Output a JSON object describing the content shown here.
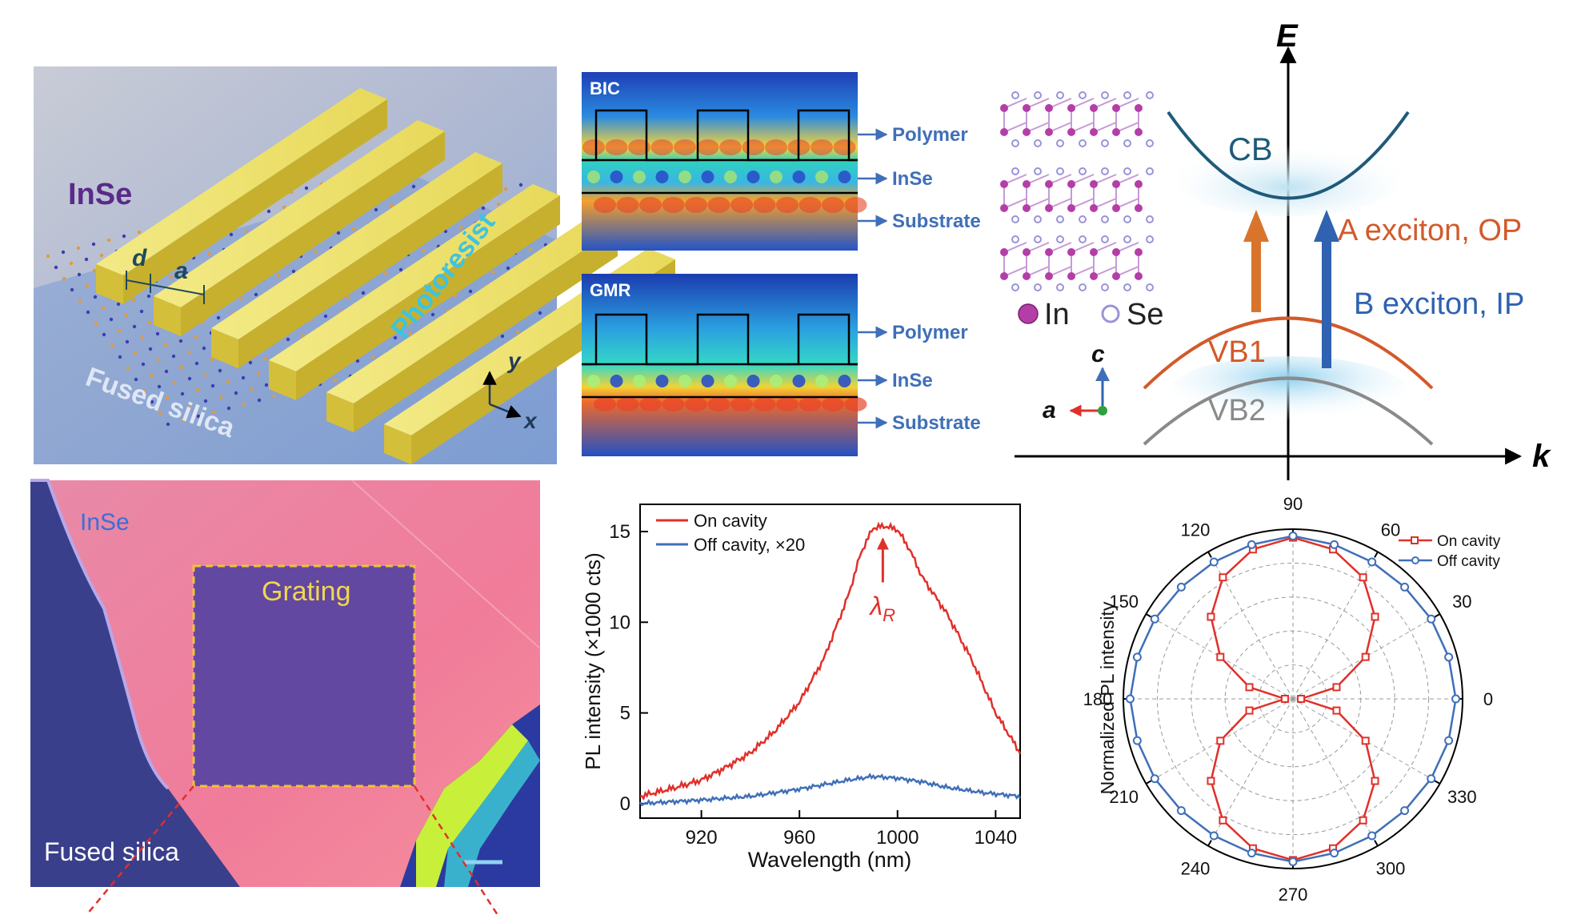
{
  "panel_device": {
    "material_label": "InSe",
    "resist_label": "Photoresist",
    "substrate_label": "Fused silica",
    "dim_d": "d",
    "dim_a": "a",
    "axis_y": "y",
    "axis_x": "x"
  },
  "panel_fields": {
    "bic_title": "BIC",
    "gmr_title": "GMR",
    "layers": [
      "Polymer",
      "InSe",
      "Substrate"
    ]
  },
  "panel_band": {
    "axis_e": "E",
    "axis_k": "k",
    "cb": "CB",
    "vb1": "VB1",
    "vb2": "VB2",
    "a_exciton": "A exciton, OP",
    "b_exciton": "B exciton, IP",
    "legend_in": "In",
    "legend_se": "Se",
    "axis_c": "c",
    "axis_a": "a",
    "colors": {
      "cb": "#1f5a7a",
      "vb1": "#d35a2a",
      "vb2": "#8a8a8a",
      "a_arrow": "#d9742c",
      "b_arrow": "#2f62b0",
      "in_atom": "#b43ea8",
      "se_atom": "#9a93d8"
    }
  },
  "panel_micro": {
    "material_label": "InSe",
    "grating_label": "Grating",
    "substrate_label": "Fused silica"
  },
  "chart_data": [
    {
      "type": "line",
      "xlabel": "Wavelength (nm)",
      "ylabel": "PL intensity (×1000 cts)",
      "xlim": [
        895,
        1050
      ],
      "ylim": [
        -0.8,
        16.5
      ],
      "xticks": [
        920,
        960,
        1000,
        1040
      ],
      "yticks": [
        0,
        5,
        10,
        15
      ],
      "annotation": {
        "text": "λ",
        "subscript": "R",
        "x": 994
      },
      "legend_position": "top-left",
      "series": [
        {
          "name": "On cavity",
          "color": "#e0302a",
          "x": [
            895,
            910,
            920,
            930,
            940,
            950,
            960,
            970,
            980,
            985,
            990,
            995,
            1000,
            1005,
            1010,
            1020,
            1030,
            1040,
            1050
          ],
          "y": [
            0.4,
            0.9,
            1.3,
            2.0,
            2.8,
            4.0,
            5.6,
            8.0,
            11.5,
            13.8,
            15.2,
            15.3,
            15.1,
            14.0,
            12.5,
            10.5,
            8.0,
            5.0,
            2.8
          ]
        },
        {
          "name": "Off cavity, ×20",
          "color": "#3f6fb8",
          "x": [
            895,
            920,
            940,
            960,
            980,
            990,
            1000,
            1010,
            1020,
            1035,
            1050
          ],
          "y": [
            0.0,
            0.2,
            0.4,
            0.8,
            1.3,
            1.5,
            1.4,
            1.2,
            0.9,
            0.6,
            0.4
          ]
        }
      ]
    },
    {
      "type": "polar",
      "ylabel": "Normalized PL intensity",
      "angle_ticks": [
        0,
        30,
        60,
        90,
        120,
        150,
        180,
        210,
        240,
        270,
        300,
        330
      ],
      "rlim": [
        0,
        1
      ],
      "legend_position": "top-right",
      "series": [
        {
          "name": "On cavity",
          "color": "#e0302a",
          "angle": [
            0,
            15,
            30,
            45,
            60,
            75,
            90,
            105,
            120,
            135,
            150,
            165,
            180,
            195,
            210,
            225,
            240,
            255,
            270,
            285,
            300,
            315,
            330,
            345
          ],
          "r": [
            0.05,
            0.28,
            0.52,
            0.72,
            0.87,
            0.96,
            1.0,
            0.96,
            0.87,
            0.72,
            0.52,
            0.28,
            0.05,
            0.28,
            0.52,
            0.72,
            0.87,
            0.96,
            1.0,
            0.96,
            0.87,
            0.72,
            0.52,
            0.28
          ]
        },
        {
          "name": "Off cavity",
          "color": "#3f6fb8",
          "angle": [
            0,
            15,
            30,
            45,
            60,
            75,
            90,
            105,
            120,
            135,
            150,
            165,
            180,
            195,
            210,
            225,
            240,
            255,
            270,
            285,
            300,
            315,
            330,
            345
          ],
          "r": [
            1.0,
            0.99,
            0.98,
            0.97,
            0.97,
            0.98,
            1.0,
            0.98,
            0.97,
            0.97,
            0.98,
            0.99,
            1.0,
            0.99,
            0.98,
            0.97,
            0.97,
            0.98,
            1.0,
            0.98,
            0.97,
            0.97,
            0.98,
            0.99
          ]
        }
      ]
    }
  ]
}
